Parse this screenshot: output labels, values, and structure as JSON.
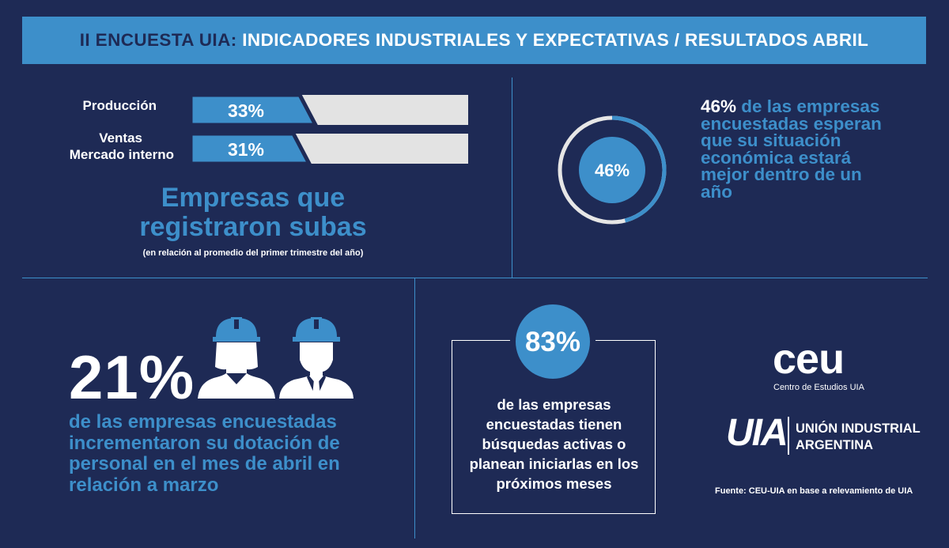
{
  "header": {
    "prefix": "II ENCUESTA UIA:",
    "title": "INDICADORES INDUSTRIALES Y EXPECTATIVAS / RESULTADOS ABRIL"
  },
  "sales_panel": {
    "bars": [
      {
        "label_lines": [
          "Producción"
        ],
        "value": 33,
        "value_label": "33%"
      },
      {
        "label_lines": [
          "Ventas",
          "Mercado interno"
        ],
        "value": 31,
        "value_label": "31%"
      }
    ],
    "headline_line1": "Empresas que",
    "headline_line2": "registraron subas",
    "note": "(en relación al promedio del primer trimestre del año)"
  },
  "expectations": {
    "ring_value": 46,
    "ring_label": "46%",
    "text_highlight": "46%",
    "text_rest": " de las empresas encuestadas esperan que su situación económica estará mejor dentro de un año"
  },
  "staff": {
    "big_value": "21%",
    "text": "de las empresas encuestadas incrementaron su dotación de personal en el mes de abril en relación a marzo"
  },
  "search": {
    "value_label": "83%",
    "text": "de las empresas encuestadas tienen búsquedas activas o planean iniciarlas en los próximos meses"
  },
  "logos": {
    "ceu_text": "ceu",
    "ceu_subtitle": "Centro de Estudios UIA",
    "uia_mark": "UIA",
    "uia_line1": "UNIÓN INDUSTRIAL",
    "uia_line2": "ARGENTINA"
  },
  "footer": {
    "source": "Fuente: CEU-UIA en base a relevamiento de UIA"
  },
  "colors": {
    "background": "#1e2a55",
    "accent": "#3d8fca",
    "bar_track": "#e3e3e3",
    "ring_track": "#e6e6e6"
  }
}
